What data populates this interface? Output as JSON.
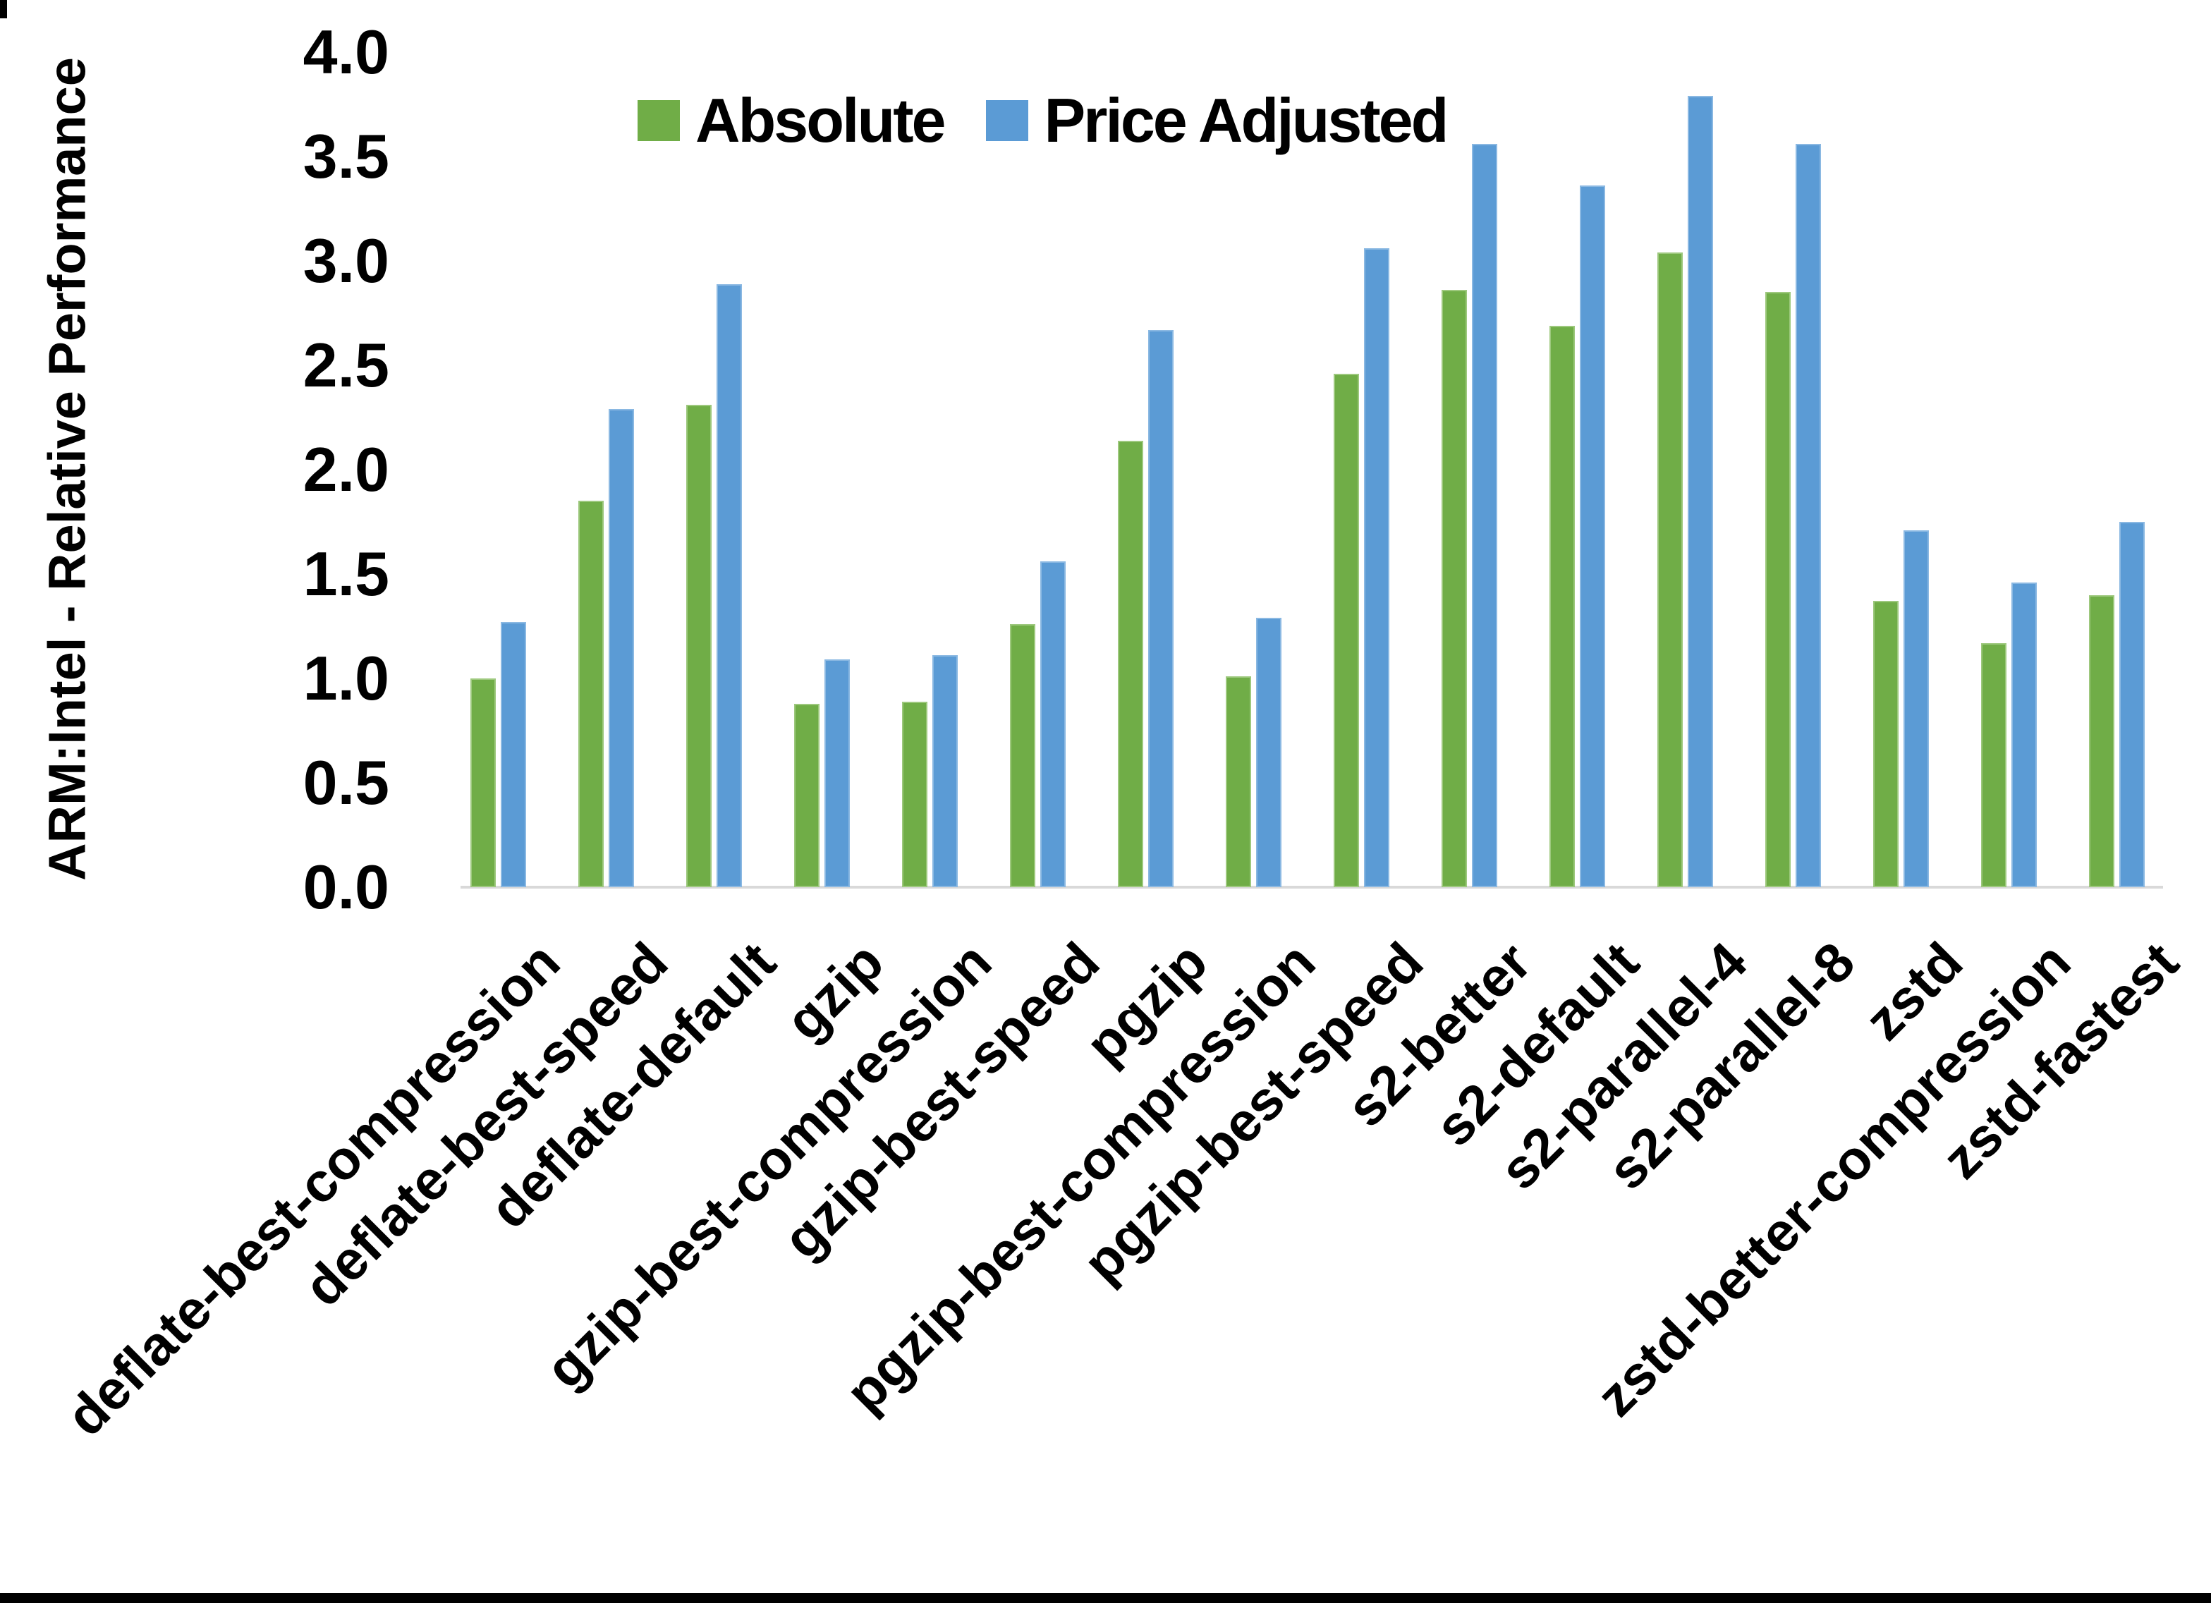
{
  "chart_data": {
    "type": "bar",
    "title": "",
    "xlabel": "",
    "ylabel": "ARM:Intel - Relative Performance",
    "ylim": [
      0.0,
      4.0
    ],
    "ytick_labels": [
      "0.0",
      "0.5",
      "1.0",
      "1.5",
      "2.0",
      "2.5",
      "3.0",
      "3.5",
      "4.0"
    ],
    "grid": false,
    "legend_position": "top",
    "legend": [
      {
        "label": "Absolute",
        "color": "#70AD47"
      },
      {
        "label": "Price Adjusted",
        "color": "#5B9BD5"
      }
    ],
    "categories": [
      "deflate-best-compression",
      "deflate-best-speed",
      "deflate-default",
      "gzip",
      "gzip-best-compression",
      "gzip-best-speed",
      "pgzip",
      "pgzip-best-compression",
      "pgzip-best-speed",
      "s2-better",
      "s2-default",
      "s2-parallel-4",
      "s2-parallel-8",
      "zstd",
      "zstd-better-compression",
      "zstd-fastest"
    ],
    "series": [
      {
        "name": "Absolute",
        "color": "#70AD47",
        "values": [
          1.0,
          1.85,
          2.31,
          0.88,
          0.89,
          1.26,
          2.14,
          1.01,
          2.46,
          2.86,
          2.69,
          3.04,
          2.85,
          1.37,
          1.17,
          1.4
        ]
      },
      {
        "name": "Price Adjusted",
        "color": "#5B9BD5",
        "values": [
          1.27,
          2.29,
          2.89,
          1.09,
          1.11,
          1.56,
          2.67,
          1.29,
          3.06,
          3.56,
          3.36,
          3.79,
          3.56,
          1.71,
          1.46,
          1.75
        ]
      }
    ]
  },
  "colors": {
    "absolute": "#70AD47",
    "price_adjusted": "#5B9BD5",
    "axis_line": "#d9d9d9",
    "text": "#000000"
  }
}
